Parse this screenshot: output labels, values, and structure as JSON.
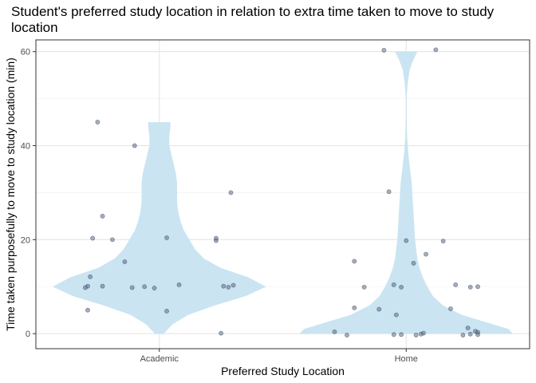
{
  "chart_data": {
    "type": "violin",
    "title": "Student's preferred study location in relation to extra time taken to move to study location",
    "xlabel": "Preferred Study Location",
    "ylabel": "Time taken purposefully to move to study location (min)",
    "categories": [
      "Academic",
      "Home"
    ],
    "y_ticks": [
      0,
      20,
      40,
      60
    ],
    "ylim": [
      -3.2,
      62.5
    ],
    "grid": true,
    "colors": {
      "violin": "#c7e3f1",
      "points": "#5a6b86",
      "grid": "#ebebeb",
      "border": "#333333"
    },
    "violins": [
      {
        "category": "Academic",
        "profile": [
          [
            0,
            0.04
          ],
          [
            2,
            0.12
          ],
          [
            4,
            0.26
          ],
          [
            6,
            0.5
          ],
          [
            8,
            0.78
          ],
          [
            10,
            0.96
          ],
          [
            12,
            0.8
          ],
          [
            14,
            0.55
          ],
          [
            16,
            0.4
          ],
          [
            18,
            0.32
          ],
          [
            20,
            0.27
          ],
          [
            22,
            0.22
          ],
          [
            24,
            0.19
          ],
          [
            26,
            0.17
          ],
          [
            28,
            0.16
          ],
          [
            30,
            0.16
          ],
          [
            32,
            0.16
          ],
          [
            34,
            0.15
          ],
          [
            36,
            0.13
          ],
          [
            38,
            0.11
          ],
          [
            40,
            0.09
          ],
          [
            42,
            0.09
          ],
          [
            44,
            0.1
          ],
          [
            45,
            0.1
          ]
        ]
      },
      {
        "category": "Home",
        "profile": [
          [
            0,
            0.96
          ],
          [
            1,
            0.92
          ],
          [
            2,
            0.78
          ],
          [
            4,
            0.5
          ],
          [
            6,
            0.33
          ],
          [
            8,
            0.24
          ],
          [
            10,
            0.19
          ],
          [
            12,
            0.15
          ],
          [
            14,
            0.12
          ],
          [
            16,
            0.1
          ],
          [
            18,
            0.09
          ],
          [
            20,
            0.08
          ],
          [
            24,
            0.07
          ],
          [
            28,
            0.06
          ],
          [
            32,
            0.05
          ],
          [
            35,
            0.035
          ],
          [
            38,
            0.02
          ],
          [
            42,
            0.008
          ],
          [
            46,
            0.004
          ],
          [
            50,
            0.004
          ],
          [
            53,
            0.012
          ],
          [
            56,
            0.03
          ],
          [
            58,
            0.06
          ],
          [
            60,
            0.1
          ]
        ]
      }
    ],
    "points": [
      {
        "category": "Academic",
        "y": 45,
        "jitter": -0.25
      },
      {
        "category": "Academic",
        "y": 40,
        "jitter": -0.1
      },
      {
        "category": "Academic",
        "y": 25,
        "jitter": -0.23
      },
      {
        "category": "Academic",
        "y": 20.3,
        "jitter": -0.27
      },
      {
        "category": "Academic",
        "y": 20,
        "jitter": -0.19
      },
      {
        "category": "Academic",
        "y": 20.4,
        "jitter": 0.03
      },
      {
        "category": "Academic",
        "y": 19.8,
        "jitter": 0.23
      },
      {
        "category": "Academic",
        "y": 20.3,
        "jitter": 0.23
      },
      {
        "category": "Academic",
        "y": 30,
        "jitter": 0.29
      },
      {
        "category": "Academic",
        "y": 15.3,
        "jitter": -0.14
      },
      {
        "category": "Academic",
        "y": 12.1,
        "jitter": -0.28
      },
      {
        "category": "Academic",
        "y": 10.1,
        "jitter": -0.29
      },
      {
        "category": "Academic",
        "y": 9.8,
        "jitter": -0.3
      },
      {
        "category": "Academic",
        "y": 10.1,
        "jitter": -0.23
      },
      {
        "category": "Academic",
        "y": 9.8,
        "jitter": -0.11
      },
      {
        "category": "Academic",
        "y": 10.0,
        "jitter": -0.06
      },
      {
        "category": "Academic",
        "y": 9.7,
        "jitter": -0.02
      },
      {
        "category": "Academic",
        "y": 10.4,
        "jitter": 0.08
      },
      {
        "category": "Academic",
        "y": 10.1,
        "jitter": 0.26
      },
      {
        "category": "Academic",
        "y": 9.9,
        "jitter": 0.28
      },
      {
        "category": "Academic",
        "y": 10.3,
        "jitter": 0.3
      },
      {
        "category": "Academic",
        "y": 5,
        "jitter": -0.29
      },
      {
        "category": "Academic",
        "y": 4.8,
        "jitter": 0.03
      },
      {
        "category": "Academic",
        "y": 0.1,
        "jitter": 0.25
      },
      {
        "category": "Home",
        "y": 60.3,
        "jitter": -0.09
      },
      {
        "category": "Home",
        "y": 60.4,
        "jitter": 0.12
      },
      {
        "category": "Home",
        "y": 30.2,
        "jitter": -0.07
      },
      {
        "category": "Home",
        "y": 19.8,
        "jitter": 0.0
      },
      {
        "category": "Home",
        "y": 19.7,
        "jitter": 0.15
      },
      {
        "category": "Home",
        "y": 16.9,
        "jitter": 0.08
      },
      {
        "category": "Home",
        "y": 15.4,
        "jitter": -0.21
      },
      {
        "category": "Home",
        "y": 15.0,
        "jitter": 0.03
      },
      {
        "category": "Home",
        "y": 10.4,
        "jitter": -0.05
      },
      {
        "category": "Home",
        "y": 9.9,
        "jitter": -0.17
      },
      {
        "category": "Home",
        "y": 9.9,
        "jitter": -0.02
      },
      {
        "category": "Home",
        "y": 10.4,
        "jitter": 0.2
      },
      {
        "category": "Home",
        "y": 9.9,
        "jitter": 0.26
      },
      {
        "category": "Home",
        "y": 10.0,
        "jitter": 0.29
      },
      {
        "category": "Home",
        "y": 5.5,
        "jitter": -0.21
      },
      {
        "category": "Home",
        "y": 5.2,
        "jitter": -0.11
      },
      {
        "category": "Home",
        "y": 5.3,
        "jitter": 0.18
      },
      {
        "category": "Home",
        "y": 4.0,
        "jitter": -0.04
      },
      {
        "category": "Home",
        "y": 1.2,
        "jitter": 0.25
      },
      {
        "category": "Home",
        "y": 0.4,
        "jitter": -0.29
      },
      {
        "category": "Home",
        "y": 0.5,
        "jitter": 0.28
      },
      {
        "category": "Home",
        "y": 0.3,
        "jitter": 0.29
      },
      {
        "category": "Home",
        "y": -0.3,
        "jitter": -0.24
      },
      {
        "category": "Home",
        "y": -0.2,
        "jitter": -0.05
      },
      {
        "category": "Home",
        "y": -0.2,
        "jitter": -0.02
      },
      {
        "category": "Home",
        "y": -0.3,
        "jitter": 0.04
      },
      {
        "category": "Home",
        "y": -0.1,
        "jitter": 0.06
      },
      {
        "category": "Home",
        "y": 0.1,
        "jitter": 0.07
      },
      {
        "category": "Home",
        "y": -0.3,
        "jitter": 0.23
      },
      {
        "category": "Home",
        "y": -0.1,
        "jitter": 0.26
      },
      {
        "category": "Home",
        "y": -0.2,
        "jitter": 0.29
      }
    ]
  }
}
